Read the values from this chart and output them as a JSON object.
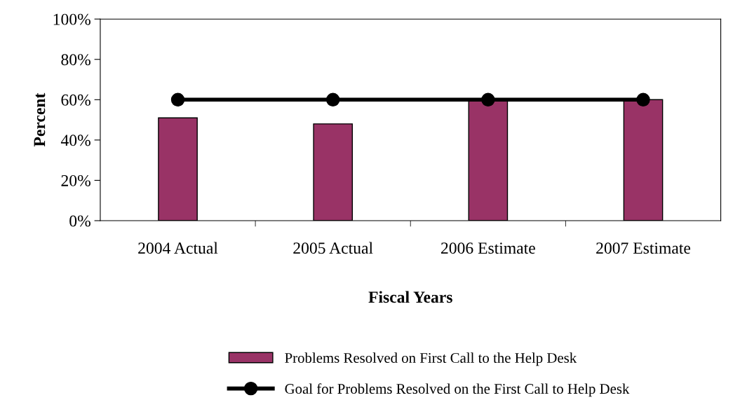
{
  "chart_data": {
    "type": "bar",
    "xlabel": "Fiscal Years",
    "ylabel": "Percent",
    "categories": [
      "2004 Actual",
      "2005 Actual",
      "2006 Estimate",
      "2007 Estimate"
    ],
    "series": [
      {
        "name": "Problems Resolved on First Call to the Help Desk",
        "color": "#993366",
        "values": [
          51,
          48,
          60,
          60
        ]
      },
      {
        "name": "Goal for Problems Resolved on the First Call to Help Desk",
        "type": "line",
        "color": "#000000",
        "marker": "circle",
        "values": [
          60,
          60,
          60,
          60
        ]
      }
    ],
    "ylim": [
      0,
      100
    ],
    "yticks": [
      {
        "value": 0,
        "label": "0%"
      },
      {
        "value": 20,
        "label": "20%"
      },
      {
        "value": 40,
        "label": "40%"
      },
      {
        "value": 60,
        "label": "60%"
      },
      {
        "value": 80,
        "label": "80%"
      },
      {
        "value": 100,
        "label": "100%"
      }
    ],
    "grid": false,
    "legend": "bottom"
  }
}
